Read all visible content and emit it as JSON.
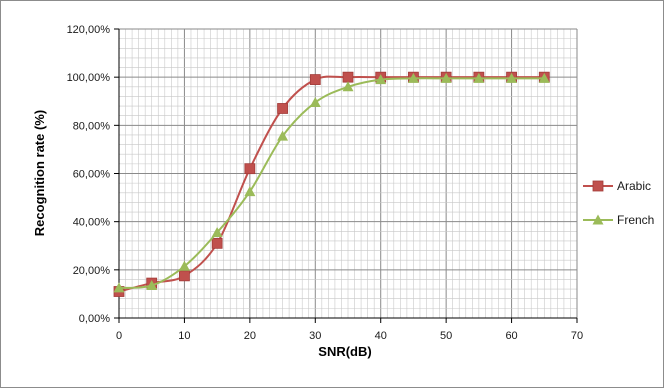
{
  "chart_data": {
    "type": "line",
    "title": "",
    "xlabel": "SNR(dB)",
    "ylabel": "Recognition rate (%)",
    "xlim": [
      0,
      70
    ],
    "ylim": [
      0,
      120
    ],
    "x_ticks": [
      "0",
      "10",
      "20",
      "30",
      "40",
      "50",
      "60",
      "70"
    ],
    "y_ticks": [
      "0,00%",
      "20,00%",
      "40,00%",
      "60,00%",
      "80,00%",
      "100,00%",
      "120,00%"
    ],
    "grid": true,
    "legend_position": "right",
    "series": [
      {
        "name": "Arabic",
        "color": "#c0504d",
        "marker": "square",
        "x": [
          0,
          5,
          10,
          15,
          20,
          25,
          30,
          35,
          40,
          45,
          50,
          55,
          60,
          65
        ],
        "values": [
          11,
          14.5,
          17.5,
          31,
          62,
          87,
          99,
          100,
          100,
          100,
          100,
          100,
          100,
          100
        ]
      },
      {
        "name": "French",
        "color": "#9bbb59",
        "marker": "triangle",
        "x": [
          0,
          5,
          10,
          15,
          20,
          25,
          30,
          35,
          40,
          45,
          50,
          55,
          60,
          65
        ],
        "values": [
          12.5,
          13.5,
          21.5,
          35.5,
          52.5,
          75.5,
          89.5,
          96,
          99,
          99.5,
          99.5,
          99.5,
          99.5,
          99.5
        ]
      }
    ]
  }
}
